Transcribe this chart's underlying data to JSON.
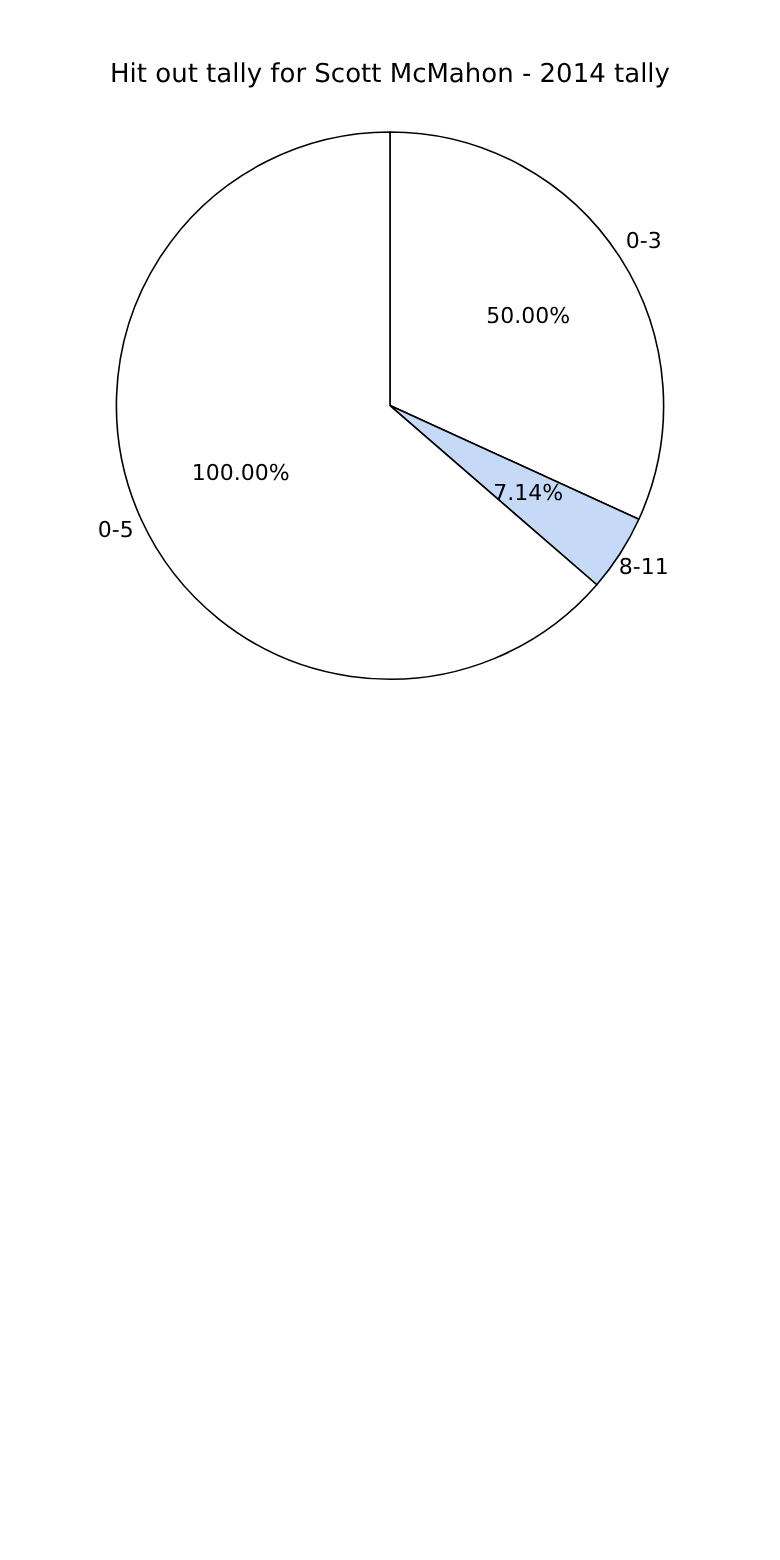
{
  "chart_data": {
    "type": "pie",
    "title": "Hit out tally for Scott McMahon - 2014 tally",
    "categories": [
      "0-3",
      "8-11",
      "0-5"
    ],
    "values": [
      50,
      7.14,
      100
    ],
    "value_labels": [
      "50.00%",
      "7.14%",
      "100.00%"
    ],
    "colors": [
      "#ffffff",
      "#c6d9f7",
      "#ffffff"
    ],
    "legend": false
  }
}
